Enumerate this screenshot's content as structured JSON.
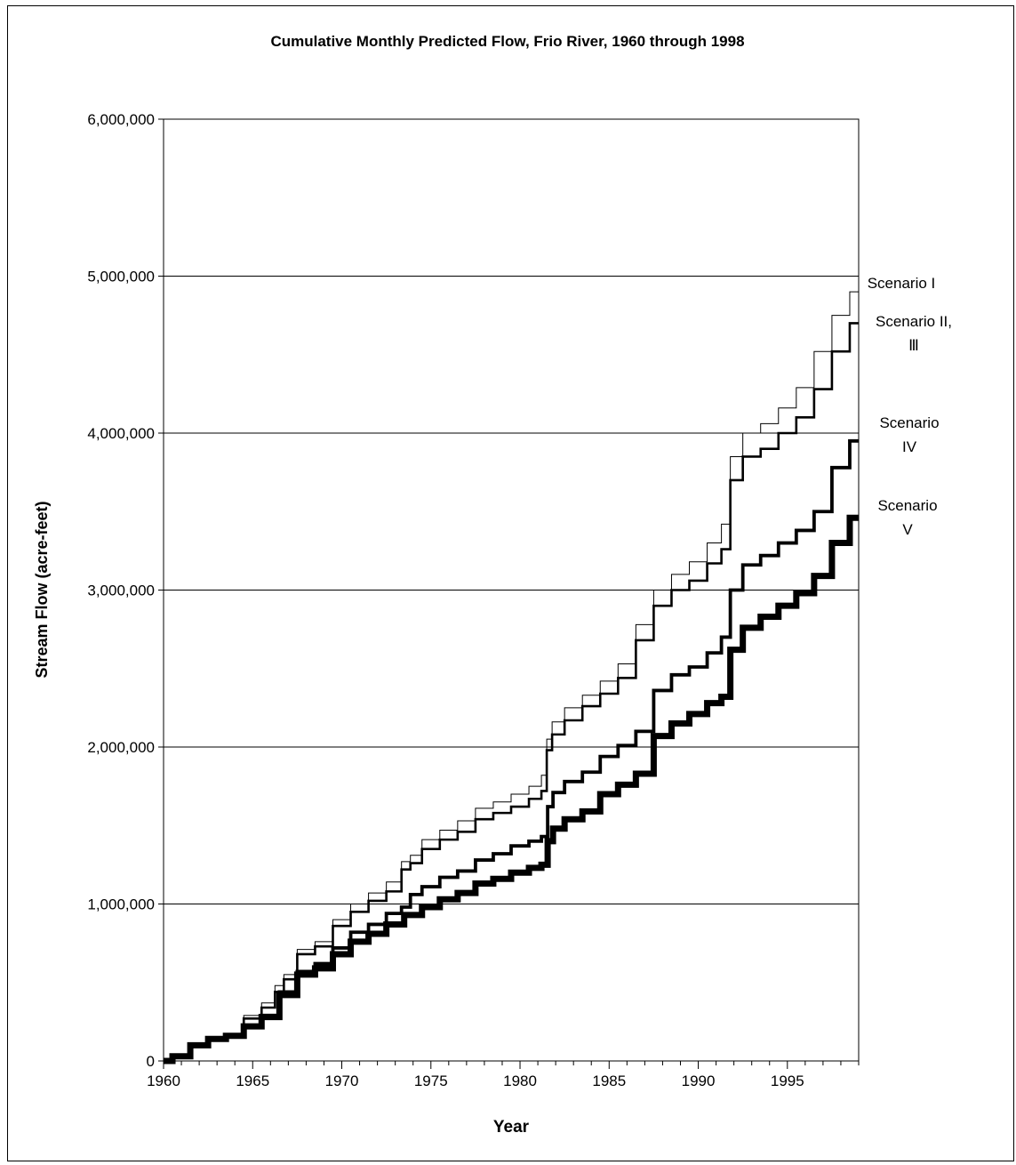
{
  "chart_data": {
    "type": "line",
    "title": "Cumulative Monthly Predicted Flow, Frio River, 1960 through 1998",
    "xlabel": "Year",
    "ylabel": "Stream Flow  (acre-feet)",
    "xlim": [
      1960,
      1999
    ],
    "ylim": [
      0,
      6000000
    ],
    "x_ticks": [
      1960,
      1965,
      1970,
      1975,
      1980,
      1985,
      1990,
      1995
    ],
    "x_tick_labels": [
      "1960",
      "1965",
      "1970",
      "1975",
      "1980",
      "1985",
      "1990",
      "1995"
    ],
    "y_ticks": [
      0,
      1000000,
      2000000,
      3000000,
      4000000,
      5000000,
      6000000
    ],
    "y_tick_labels": [
      "0",
      "1,000,000",
      "2,000,000",
      "3,000,000",
      "4,000,000",
      "5,000,000",
      "6,000,000"
    ],
    "grid": "horizontal",
    "series": [
      {
        "name": "Scenario I",
        "label_lines": [
          "Scenario I"
        ],
        "x": [
          1960,
          1961,
          1962,
          1963,
          1964,
          1965,
          1966,
          1966.5,
          1967,
          1968,
          1969,
          1970,
          1971,
          1972,
          1973,
          1973.7,
          1974,
          1975,
          1976,
          1977,
          1978,
          1979,
          1980,
          1981,
          1981.4,
          1981.6,
          1982,
          1983,
          1984,
          1985,
          1986,
          1987,
          1988,
          1989,
          1990,
          1991,
          1991.6,
          1992,
          1993,
          1994,
          1995,
          1996,
          1997,
          1998,
          1999
        ],
        "values": [
          0,
          30000,
          100000,
          140000,
          160000,
          290000,
          370000,
          480000,
          550000,
          710000,
          760000,
          900000,
          1000000,
          1070000,
          1140000,
          1270000,
          1310000,
          1410000,
          1470000,
          1530000,
          1610000,
          1650000,
          1700000,
          1750000,
          1820000,
          2050000,
          2160000,
          2250000,
          2330000,
          2420000,
          2530000,
          2780000,
          3000000,
          3100000,
          3180000,
          3300000,
          3420000,
          3850000,
          4000000,
          4060000,
          4160000,
          4290000,
          4520000,
          4750000,
          4900000
        ]
      },
      {
        "name": "Scenario II, III",
        "label_lines": [
          "Scenario II,",
          "Ⅲ"
        ],
        "x": [
          1960,
          1961,
          1962,
          1963,
          1964,
          1965,
          1966,
          1966.5,
          1967,
          1968,
          1969,
          1970,
          1971,
          1972,
          1973,
          1973.7,
          1974,
          1975,
          1976,
          1977,
          1978,
          1979,
          1980,
          1981,
          1981.4,
          1981.6,
          1982,
          1983,
          1984,
          1985,
          1986,
          1987,
          1988,
          1989,
          1990,
          1991,
          1991.6,
          1992,
          1993,
          1994,
          1995,
          1996,
          1997,
          1998,
          1999
        ],
        "values": [
          0,
          30000,
          100000,
          140000,
          160000,
          270000,
          340000,
          440000,
          520000,
          680000,
          730000,
          860000,
          950000,
          1020000,
          1080000,
          1220000,
          1260000,
          1350000,
          1410000,
          1460000,
          1540000,
          1580000,
          1620000,
          1670000,
          1720000,
          1980000,
          2080000,
          2170000,
          2260000,
          2340000,
          2440000,
          2680000,
          2900000,
          3000000,
          3060000,
          3170000,
          3260000,
          3700000,
          3850000,
          3900000,
          4000000,
          4100000,
          4280000,
          4520000,
          4700000
        ]
      },
      {
        "name": "Scenario IV",
        "label_lines": [
          "Scenario",
          "IV"
        ],
        "x": [
          1960,
          1961,
          1962,
          1963,
          1964,
          1965,
          1966,
          1967,
          1968,
          1969,
          1970,
          1971,
          1972,
          1973,
          1973.7,
          1974,
          1975,
          1976,
          1977,
          1978,
          1979,
          1980,
          1981,
          1981.4,
          1981.7,
          1982,
          1983,
          1984,
          1985,
          1986,
          1987,
          1988,
          1989,
          1990,
          1991,
          1991.6,
          1992,
          1993,
          1994,
          1995,
          1996,
          1997,
          1998,
          1999
        ],
        "values": [
          0,
          30000,
          100000,
          140000,
          160000,
          220000,
          290000,
          440000,
          570000,
          620000,
          720000,
          820000,
          870000,
          940000,
          980000,
          1060000,
          1110000,
          1170000,
          1210000,
          1280000,
          1320000,
          1370000,
          1400000,
          1430000,
          1620000,
          1710000,
          1780000,
          1840000,
          1940000,
          2010000,
          2100000,
          2360000,
          2460000,
          2510000,
          2600000,
          2700000,
          3000000,
          3160000,
          3220000,
          3300000,
          3380000,
          3500000,
          3780000,
          3950000
        ]
      },
      {
        "name": "Scenario V",
        "label_lines": [
          "Scenario",
          "V"
        ],
        "x": [
          1960,
          1961,
          1962,
          1963,
          1964,
          1965,
          1966,
          1967,
          1968,
          1969,
          1970,
          1971,
          1972,
          1973,
          1974,
          1975,
          1976,
          1977,
          1978,
          1979,
          1980,
          1981,
          1981.4,
          1981.7,
          1982,
          1983,
          1984,
          1985,
          1986,
          1987,
          1988,
          1989,
          1990,
          1991,
          1991.6,
          1992,
          1993,
          1994,
          1995,
          1996,
          1997,
          1998,
          1999
        ],
        "values": [
          0,
          30000,
          100000,
          140000,
          160000,
          220000,
          280000,
          420000,
          550000,
          590000,
          680000,
          760000,
          810000,
          870000,
          930000,
          980000,
          1030000,
          1070000,
          1130000,
          1160000,
          1200000,
          1230000,
          1250000,
          1400000,
          1480000,
          1540000,
          1590000,
          1700000,
          1760000,
          1830000,
          2070000,
          2150000,
          2210000,
          2280000,
          2320000,
          2620000,
          2760000,
          2830000,
          2900000,
          2980000,
          3090000,
          3300000,
          3460000
        ]
      }
    ]
  }
}
